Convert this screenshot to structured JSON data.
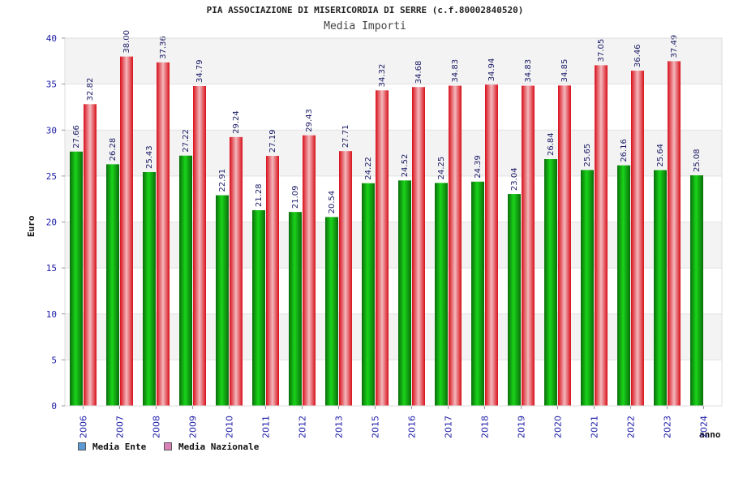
{
  "chart_data": {
    "type": "bar",
    "title": "PIA ASSOCIAZIONE DI MISERICORDIA DI SERRE (c.f.80002840520)",
    "subtitle": "Media Importi",
    "ylabel": "Euro",
    "xlabel": "anno",
    "ylim": [
      0,
      40
    ],
    "yticks": [
      0,
      5,
      10,
      15,
      20,
      25,
      30,
      35,
      40
    ],
    "grid": true,
    "legend_position": "bottom-left",
    "categories": [
      "2006",
      "2007",
      "2008",
      "2009",
      "2010",
      "2011",
      "2012",
      "2013",
      "2015",
      "2016",
      "2017",
      "2018",
      "2019",
      "2020",
      "2021",
      "2022",
      "2023",
      "2024"
    ],
    "series": [
      {
        "name": "Media Ente",
        "legend_color": "#5b9bd5",
        "bar_color": "#1ab01a",
        "values": [
          27.66,
          26.28,
          25.43,
          27.22,
          22.91,
          21.28,
          21.09,
          20.54,
          24.22,
          24.52,
          24.25,
          24.39,
          23.04,
          26.84,
          25.65,
          26.16,
          25.64,
          25.08
        ]
      },
      {
        "name": "Media Nazionale",
        "legend_color": "#d982b8",
        "bar_color": "#e8202a",
        "values": [
          32.82,
          38.0,
          37.36,
          34.79,
          29.24,
          27.19,
          29.43,
          27.71,
          34.32,
          34.68,
          34.83,
          34.94,
          34.83,
          34.85,
          37.05,
          36.46,
          37.49,
          null
        ]
      }
    ],
    "value_labels": [
      [
        "27.66",
        "26.28",
        "25.43",
        "27.22",
        "22.91",
        "21.28",
        "21.09",
        "20.54",
        "24.22",
        "24.52",
        "24.25",
        "24.39",
        "23.04",
        "26.84",
        "25.65",
        "26.16",
        "25.64",
        "25.08"
      ],
      [
        "32.82",
        "38.00",
        "37.36",
        "34.79",
        "29.24",
        "27.19",
        "29.43",
        "27.71",
        "34.32",
        "34.68",
        "34.83",
        "34.94",
        "34.83",
        "34.85",
        "37.05",
        "36.46",
        "37.49",
        null
      ]
    ]
  }
}
